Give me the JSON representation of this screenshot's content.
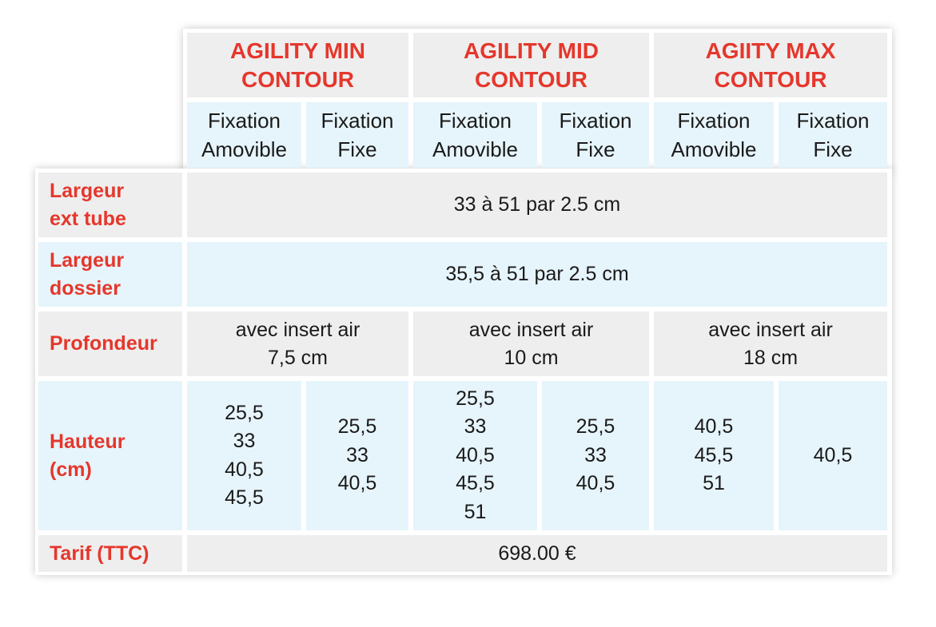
{
  "columns": {
    "group_headers": [
      {
        "label": "AGILITY MIN\nCONTOUR"
      },
      {
        "label": "AGILITY MID\nCONTOUR"
      },
      {
        "label": "AGIITY MAX\nCONTOUR"
      }
    ],
    "sub_headers": [
      "Fixation\nAmovible",
      "Fixation\nFixe",
      "Fixation\nAmovible",
      "Fixation\nFixe",
      "Fixation\nAmovible",
      "Fixation\nFixe"
    ]
  },
  "rows": {
    "largeur_ext_tube": {
      "label": "Largeur\next tube",
      "value": "33 à 51 par 2.5 cm"
    },
    "largeur_dossier": {
      "label": "Largeur\ndossier",
      "value": "35,5 à 51 par 2.5 cm"
    },
    "profondeur": {
      "label": "Profondeur",
      "values": [
        "avec insert air\n7,5 cm",
        "avec insert air\n10 cm",
        "avec insert air\n18 cm"
      ]
    },
    "hauteur": {
      "label": "Hauteur\n(cm)",
      "values": [
        "25,5\n33\n40,5\n45,5",
        "25,5\n33\n40,5",
        "25,5\n33\n40,5\n45,5\n51",
        "25,5\n33\n40,5",
        "40,5\n45,5\n51",
        "40,5"
      ]
    },
    "tarif": {
      "label": "Tarif (TTC)",
      "value": "698.00 €"
    }
  },
  "colors": {
    "accent_red": "#e5372c",
    "cell_grey": "#eeeeee",
    "cell_blue": "#e6f4fb",
    "text": "#1a1a1a"
  }
}
